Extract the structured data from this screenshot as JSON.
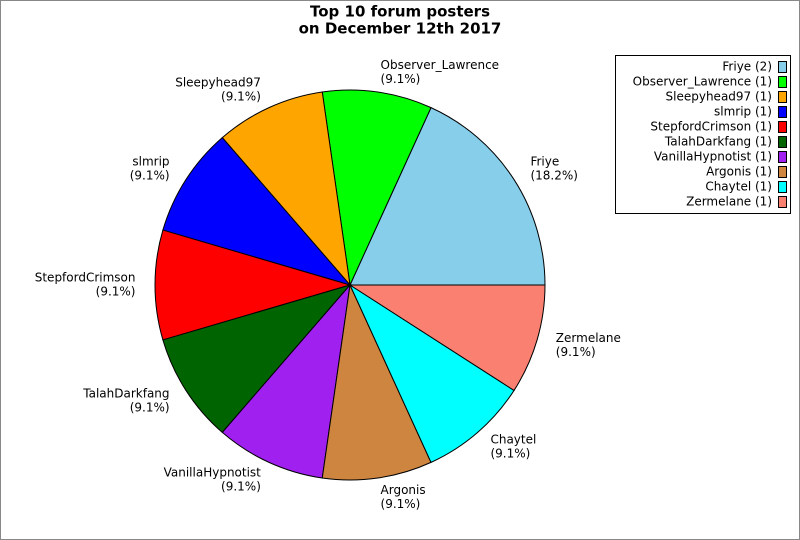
{
  "chart_data": {
    "type": "pie",
    "title": [
      "Top 10 forum posters",
      "on December 12th 2017"
    ],
    "categories": [
      "Friye",
      "Observer_Lawrence",
      "Sleepyhead97",
      "slmrip",
      "StepfordCrimson",
      "TalahDarkfang",
      "VanillaHypnotist",
      "Argonis",
      "Chaytel",
      "Zermelane"
    ],
    "values": [
      18.2,
      9.1,
      9.1,
      9.1,
      9.1,
      9.1,
      9.1,
      9.1,
      9.1,
      9.1
    ],
    "value_labels": [
      "(18.2%)",
      "(9.1%)",
      "(9.1%)",
      "(9.1%)",
      "(9.1%)",
      "(9.1%)",
      "(9.1%)",
      "(9.1%)",
      "(9.1%)",
      "(9.1%)"
    ],
    "legend_labels": [
      "Friye (2)",
      "Observer_Lawrence (1)",
      "Sleepyhead97 (1)",
      "slmrip (1)",
      "StepfordCrimson (1)",
      "TalahDarkfang (1)",
      "VanillaHypnotist (1)",
      "Argonis (1)",
      "Chaytel (1)",
      "Zermelane (1)"
    ],
    "colors": [
      "#87ceeb",
      "#00ff00",
      "#ffa500",
      "#0000ff",
      "#ff0000",
      "#006400",
      "#a020f0",
      "#cd853f",
      "#00ffff",
      "#fa8072"
    ],
    "legend": "upper right"
  }
}
